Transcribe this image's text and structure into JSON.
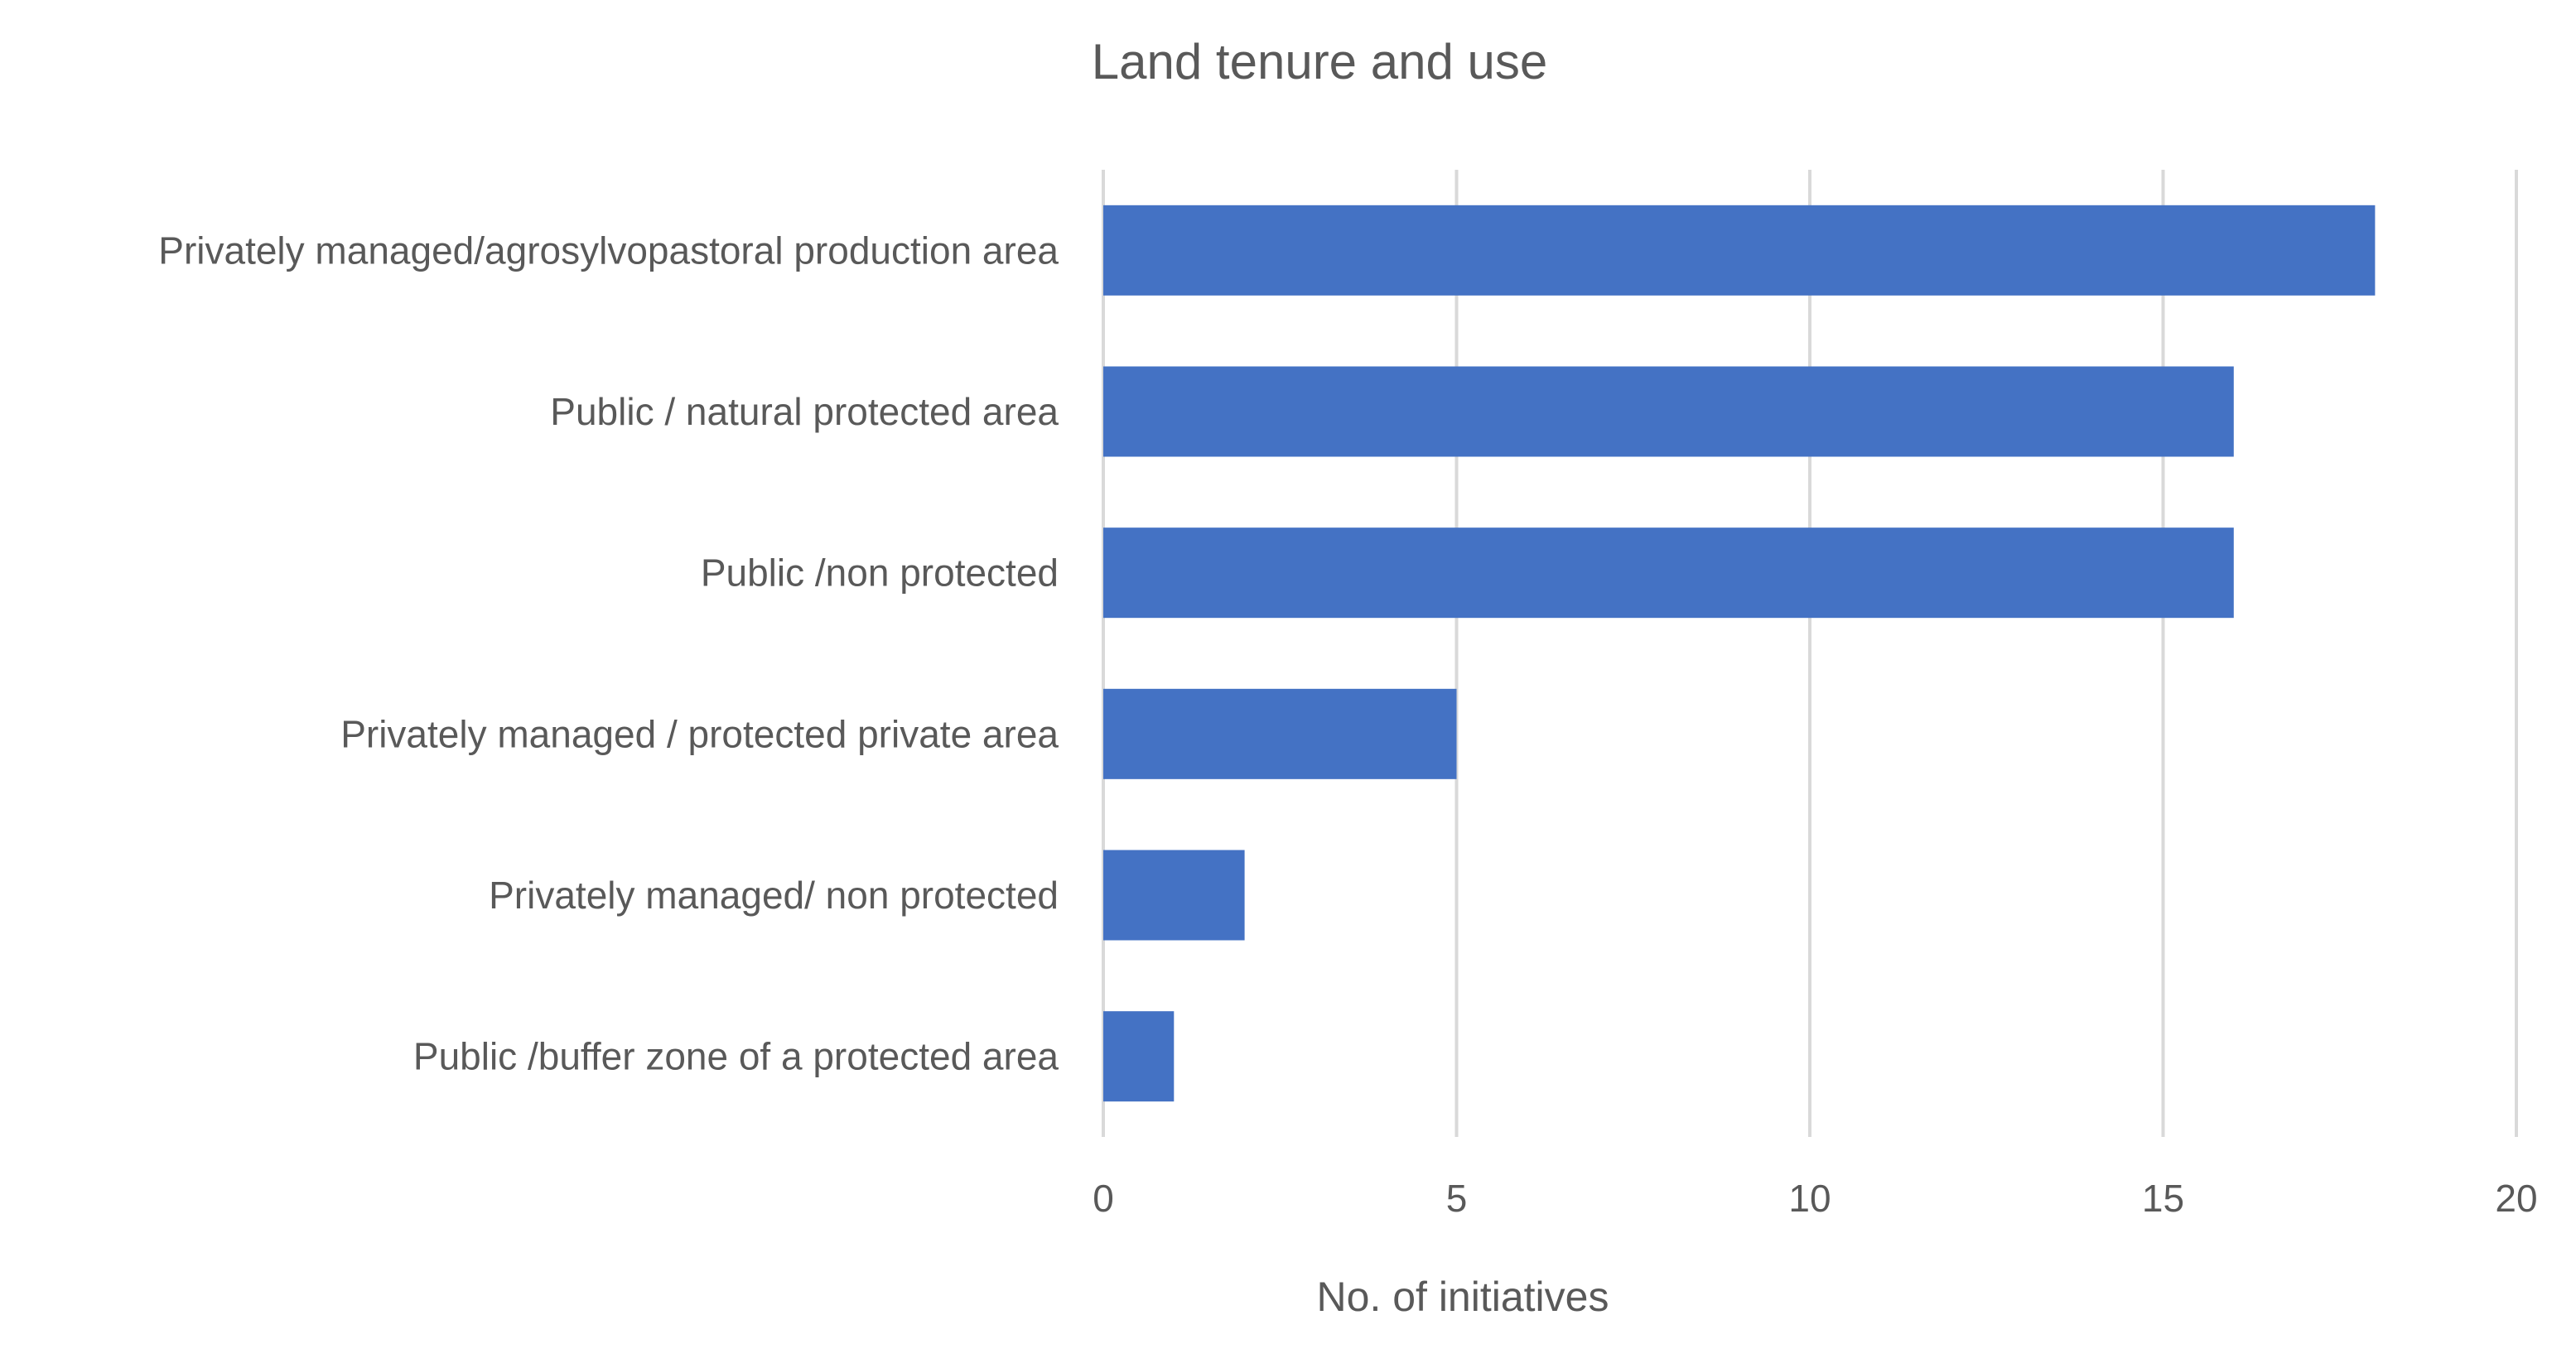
{
  "chart_data": {
    "type": "bar",
    "orientation": "horizontal",
    "title": "Land tenure and use",
    "xlabel": "No. of initiatives",
    "ylabel": "",
    "xlim": [
      0,
      20
    ],
    "x_ticks": [
      0,
      5,
      10,
      15,
      20
    ],
    "grid": true,
    "legend": "none",
    "categories": [
      "Privately managed/agrosylvopastoral production area",
      "Public / natural protected area",
      "Public /non protected",
      "Privately managed / protected private area",
      "Privately managed/ non protected",
      "Public /buffer zone of a protected area"
    ],
    "values": [
      18,
      16,
      16,
      5,
      2,
      1
    ],
    "bar_color": "#4472C4",
    "grid_color": "#D9D9D9",
    "text_color": "#595959"
  }
}
